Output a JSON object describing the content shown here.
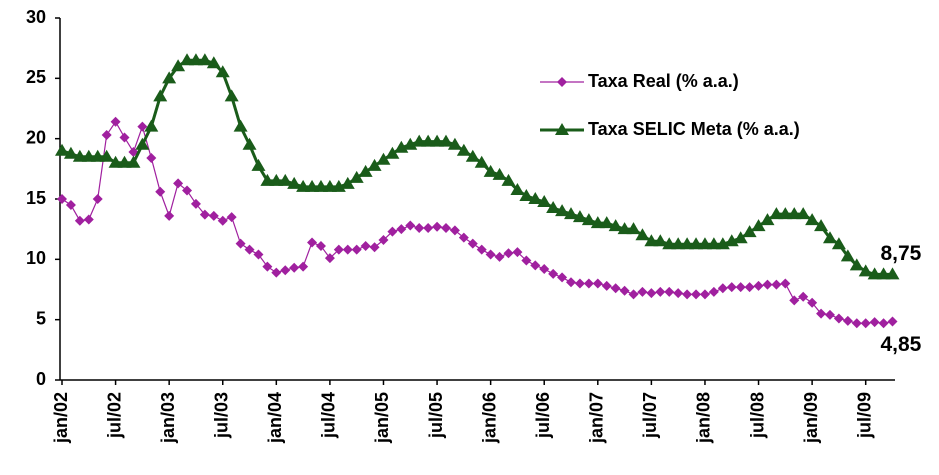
{
  "chart_data": {
    "type": "line",
    "categories": [
      "jan/02",
      null,
      null,
      null,
      null,
      null,
      "jul/02",
      null,
      null,
      null,
      null,
      null,
      "jan/03",
      null,
      null,
      null,
      null,
      null,
      "jul/03",
      null,
      null,
      null,
      null,
      null,
      "jan/04",
      null,
      null,
      null,
      null,
      null,
      "jul/04",
      null,
      null,
      null,
      null,
      null,
      "jan/05",
      null,
      null,
      null,
      null,
      null,
      "jul/05",
      null,
      null,
      null,
      null,
      null,
      "jan/06",
      null,
      null,
      null,
      null,
      null,
      "jul/06",
      null,
      null,
      null,
      null,
      null,
      "jan/07",
      null,
      null,
      null,
      null,
      null,
      "jul/07",
      null,
      null,
      null,
      null,
      null,
      "jan/08",
      null,
      null,
      null,
      null,
      null,
      "jul/08",
      null,
      null,
      null,
      null,
      null,
      "jan/09",
      null,
      null,
      null,
      null,
      null,
      "jul/09",
      null,
      null,
      null
    ],
    "series": [
      {
        "name": "Taxa Real (% a.a.)",
        "color": "#a0209f",
        "marker": "diamond",
        "end_label": "4,85",
        "values": [
          15,
          14.5,
          13.2,
          13.3,
          15,
          20.3,
          21.4,
          20.1,
          18.9,
          21,
          18.4,
          15.6,
          13.6,
          16.3,
          15.7,
          14.6,
          13.7,
          13.6,
          13.2,
          13.5,
          11.3,
          10.8,
          10.4,
          9.4,
          8.9,
          9.1,
          9.3,
          9.4,
          11.4,
          11.1,
          10.1,
          10.8,
          10.8,
          10.8,
          11.1,
          11,
          11.6,
          12.3,
          12.5,
          12.8,
          12.6,
          12.6,
          12.7,
          12.6,
          12.4,
          11.8,
          11.3,
          10.8,
          10.4,
          10.2,
          10.5,
          10.6,
          9.9,
          9.5,
          9.2,
          8.8,
          8.5,
          8.1,
          8,
          8,
          8,
          7.8,
          7.6,
          7.4,
          7.1,
          7.3,
          7.2,
          7.3,
          7.3,
          7.2,
          7.1,
          7.1,
          7.1,
          7.3,
          7.6,
          7.7,
          7.7,
          7.7,
          7.8,
          7.9,
          7.9,
          8,
          6.6,
          6.9,
          6.4,
          5.5,
          5.4,
          5.1,
          4.9,
          4.7,
          4.7,
          4.8,
          4.7,
          4.85
        ]
      },
      {
        "name": "Taxa SELIC Meta (% a.a.)",
        "color": "#1a5c1a",
        "marker": "triangle",
        "end_label": "8,75",
        "values": [
          19,
          18.75,
          18.5,
          18.5,
          18.5,
          18.5,
          18,
          18,
          18,
          19.5,
          21,
          23.5,
          25,
          26,
          26.5,
          26.5,
          26.5,
          26.25,
          25.5,
          23.5,
          21,
          19.5,
          17.75,
          16.5,
          16.5,
          16.5,
          16.25,
          16,
          16,
          16,
          16,
          16,
          16.25,
          16.75,
          17.25,
          17.75,
          18.25,
          18.75,
          19.25,
          19.5,
          19.75,
          19.75,
          19.75,
          19.75,
          19.5,
          19,
          18.5,
          18,
          17.25,
          17,
          16.5,
          15.75,
          15.25,
          15,
          14.75,
          14.25,
          14,
          13.75,
          13.5,
          13.25,
          13,
          13,
          12.75,
          12.5,
          12.5,
          12,
          11.5,
          11.5,
          11.25,
          11.25,
          11.25,
          11.25,
          11.25,
          11.25,
          11.25,
          11.5,
          11.75,
          12.25,
          12.75,
          13.25,
          13.75,
          13.75,
          13.75,
          13.75,
          13.25,
          12.75,
          11.75,
          11.25,
          10.25,
          9.5,
          9,
          8.75,
          8.75,
          8.75
        ]
      }
    ],
    "ylim": [
      0,
      30
    ],
    "yticks": [
      0,
      5,
      10,
      15,
      20,
      25,
      30
    ],
    "grid": false,
    "legend": "upper right"
  }
}
